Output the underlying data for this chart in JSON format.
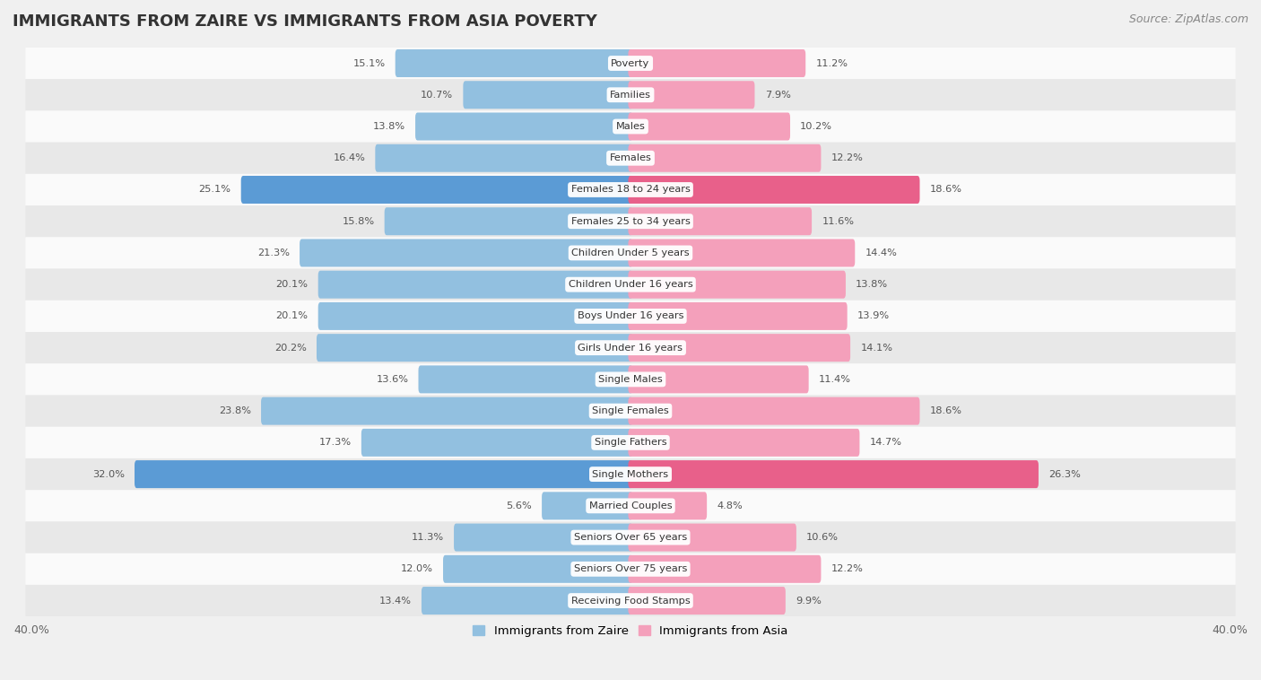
{
  "title": "IMMIGRANTS FROM ZAIRE VS IMMIGRANTS FROM ASIA POVERTY",
  "source": "Source: ZipAtlas.com",
  "categories": [
    "Poverty",
    "Families",
    "Males",
    "Females",
    "Females 18 to 24 years",
    "Females 25 to 34 years",
    "Children Under 5 years",
    "Children Under 16 years",
    "Boys Under 16 years",
    "Girls Under 16 years",
    "Single Males",
    "Single Females",
    "Single Fathers",
    "Single Mothers",
    "Married Couples",
    "Seniors Over 65 years",
    "Seniors Over 75 years",
    "Receiving Food Stamps"
  ],
  "zaire_values": [
    15.1,
    10.7,
    13.8,
    16.4,
    25.1,
    15.8,
    21.3,
    20.1,
    20.1,
    20.2,
    13.6,
    23.8,
    17.3,
    32.0,
    5.6,
    11.3,
    12.0,
    13.4
  ],
  "asia_values": [
    11.2,
    7.9,
    10.2,
    12.2,
    18.6,
    11.6,
    14.4,
    13.8,
    13.9,
    14.1,
    11.4,
    18.6,
    14.7,
    26.3,
    4.8,
    10.6,
    12.2,
    9.9
  ],
  "zaire_color": "#92C0E0",
  "asia_color": "#F4A0BB",
  "zaire_highlight_color": "#5B9BD5",
  "asia_highlight_color": "#E8608A",
  "highlight_rows": [
    4,
    13
  ],
  "background_color": "#F0F0F0",
  "row_bg_light": "#FAFAFA",
  "row_bg_dark": "#E8E8E8",
  "axis_limit": 40.0,
  "legend_zaire": "Immigrants from Zaire",
  "legend_asia": "Immigrants from Asia",
  "title_fontsize": 13,
  "source_fontsize": 9,
  "bar_height": 0.58,
  "label_box_color": "#FFFFFF",
  "label_text_color": "#555555",
  "value_text_color": "#555555"
}
